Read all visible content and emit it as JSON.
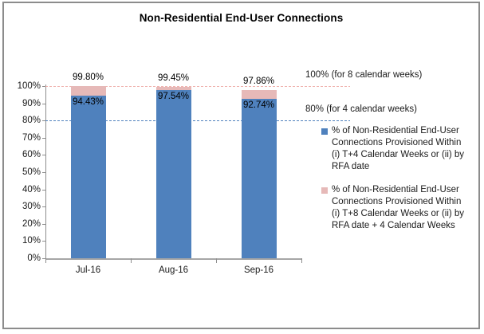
{
  "title": "Non-Residential End-User Connections",
  "chart_data": {
    "type": "bar",
    "stacked": true,
    "title": "Non-Residential End-User Connections",
    "categories": [
      "Jul-16",
      "Aug-16",
      "Sep-16"
    ],
    "series": [
      {
        "name": "% of Non-Residential End-User Connections Provisioned Within (i) T+4 Calendar Weeks or (ii) by RFA date",
        "color": "#4F81BD",
        "values": [
          94.43,
          97.54,
          92.74
        ],
        "value_labels": [
          "94.43%",
          "97.54%",
          "92.74%"
        ]
      },
      {
        "name": "% of Non-Residential End-User Connections Provisioned Within (i) T+8 Calendar Weeks or (ii) by RFA date + 4 Calendar Weeks",
        "color": "#E6B9B8",
        "values": [
          5.37,
          1.91,
          5.12
        ]
      }
    ],
    "stack_totals": [
      99.8,
      99.45,
      97.86
    ],
    "stack_total_labels": [
      "99.80%",
      "99.45%",
      "97.86%"
    ],
    "y_axis": {
      "min": 0,
      "max": 100,
      "tick_labels": [
        "0%",
        "10%",
        "20%",
        "30%",
        "40%",
        "50%",
        "60%",
        "70%",
        "80%",
        "90%",
        "100%"
      ]
    },
    "reference_lines": [
      {
        "value": 100,
        "label": "100% (for 8 calendar weeks)",
        "color": "#F0B3AF",
        "style": "dashed"
      },
      {
        "value": 80,
        "label": "80% (for 4 calendar weeks)",
        "color": "#4F81BD",
        "style": "dashed"
      }
    ],
    "legend_position": "right",
    "grid": false,
    "legend": [
      {
        "color": "#4F81BD",
        "lines": [
          "% of Non-Residential End-User",
          "Connections Provisioned Within",
          "(i) T+4 Calendar Weeks or (ii) by",
          "RFA date"
        ]
      },
      {
        "color": "#E6B9B8",
        "lines": [
          "% of Non-Residential End-User",
          "Connections Provisioned Within",
          "(i) T+8 Calendar Weeks or (ii) by",
          "RFA date + 4 Calendar Weeks"
        ]
      }
    ]
  }
}
